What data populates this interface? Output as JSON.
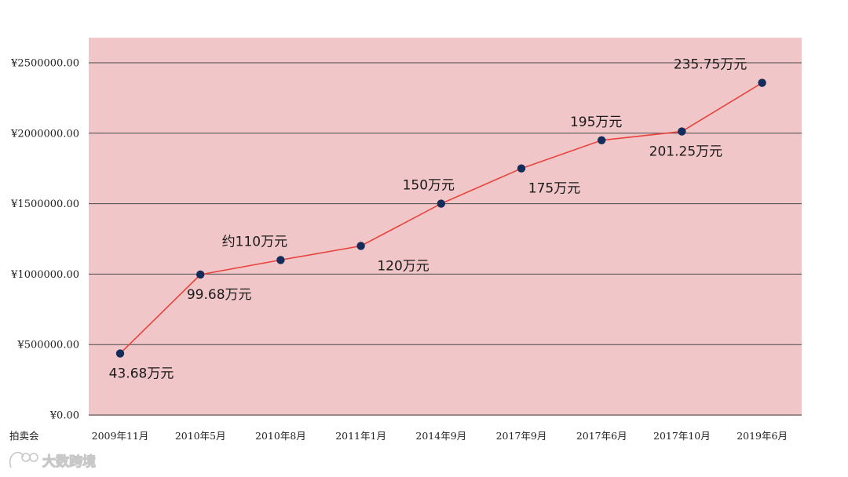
{
  "watermark": {
    "text": "大数跨境",
    "icon": "logo-icon"
  },
  "chart_data": {
    "type": "line",
    "xlabel": "拍卖会",
    "ylabel": "",
    "categories": [
      "2009年11月",
      "2010年5月",
      "2010年8月",
      "2011年1月",
      "2014年9月",
      "2017年9月",
      "2017年6月",
      "2017年10月",
      "2019年6月"
    ],
    "series": [
      {
        "values": [
          436800,
          996800,
          1100000,
          1200000,
          1500000,
          1750000,
          1950000,
          2012500,
          2357500
        ],
        "data_labels": [
          "43.68万元",
          "99.68万元",
          "约110万元",
          "120万元",
          "150万元",
          "175万元",
          "195万元",
          "201.25万元",
          "235.75万元"
        ]
      }
    ],
    "ylim": [
      0,
      2500000
    ],
    "yticks": [
      0,
      500000,
      1000000,
      1500000,
      2000000,
      2500000
    ],
    "ytick_labels": [
      "¥0.00",
      "¥500000.00",
      "¥1000000.00",
      "¥1500000.00",
      "¥2000000.00",
      "¥2500000.00"
    ],
    "grid": true,
    "legend": "none",
    "colors": {
      "plot_background": "#f0c6c8",
      "line": "#e8433c",
      "marker": "#142c5c",
      "gridline": "#4a4a4a"
    }
  }
}
